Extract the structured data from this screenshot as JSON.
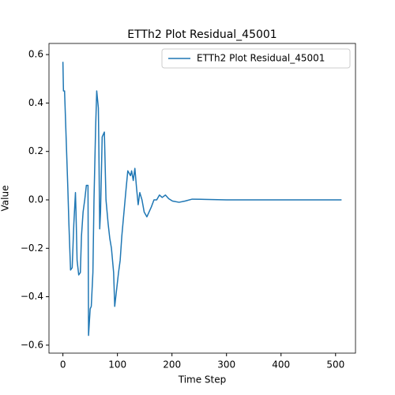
{
  "chart_data": {
    "type": "line",
    "title": "ETTh2 Plot Residual_45001",
    "xlabel": "Time Step",
    "ylabel": "Value",
    "x": [
      0,
      1,
      3,
      6,
      9,
      11,
      14,
      17,
      20,
      23,
      24,
      26,
      29,
      32,
      34,
      37,
      40,
      43,
      46,
      47,
      50,
      52,
      55,
      57,
      60,
      62,
      65,
      66,
      67.5,
      69,
      72,
      76,
      79,
      83,
      86,
      89,
      93,
      95,
      98,
      102,
      105,
      108,
      112,
      116,
      119,
      124,
      126,
      129,
      132,
      135,
      138,
      141,
      145,
      149,
      154,
      158,
      162,
      167,
      172,
      177,
      182,
      188,
      194,
      201,
      213,
      224,
      237,
      259,
      300,
      400,
      511
    ],
    "series": [
      {
        "name": "ETTh2 Plot Residual_45001",
        "color": "#1f77b4",
        "values": [
          0.57,
          0.45,
          0.45,
          0.25,
          0.05,
          -0.1,
          -0.29,
          -0.28,
          -0.1,
          0.03,
          -0.05,
          -0.25,
          -0.31,
          -0.3,
          -0.15,
          -0.05,
          0.0,
          0.06,
          0.06,
          -0.56,
          -0.45,
          -0.44,
          -0.3,
          0.0,
          0.3,
          0.45,
          0.38,
          0.2,
          -0.12,
          -0.05,
          0.26,
          0.28,
          0.0,
          -0.1,
          -0.16,
          -0.2,
          -0.3,
          -0.44,
          -0.38,
          -0.3,
          -0.25,
          -0.15,
          -0.05,
          0.05,
          0.12,
          0.1,
          0.12,
          0.08,
          0.13,
          0.05,
          -0.02,
          0.03,
          0.0,
          -0.05,
          -0.07,
          -0.05,
          -0.03,
          0.0,
          0.0,
          0.02,
          0.01,
          0.02,
          0.005,
          -0.005,
          -0.01,
          -0.005,
          0.003,
          0.002,
          0.0,
          0.0,
          0.0
        ]
      }
    ],
    "xlim": [
      -25.55,
      536.55
    ],
    "ylim": [
      -0.633,
      0.646
    ],
    "xticks": [
      0,
      100,
      200,
      300,
      400,
      500
    ],
    "yticks": [
      {
        "value": -0.6,
        "label": "−0.6"
      },
      {
        "value": -0.4,
        "label": "−0.4"
      },
      {
        "value": -0.2,
        "label": "−0.2"
      },
      {
        "value": 0,
        "label": "0.0"
      },
      {
        "value": 0.2,
        "label": "0.2"
      },
      {
        "value": 0.4,
        "label": "0.4"
      },
      {
        "value": 0.6,
        "label": "0.6"
      }
    ],
    "legend": "upper right",
    "grid": false
  }
}
